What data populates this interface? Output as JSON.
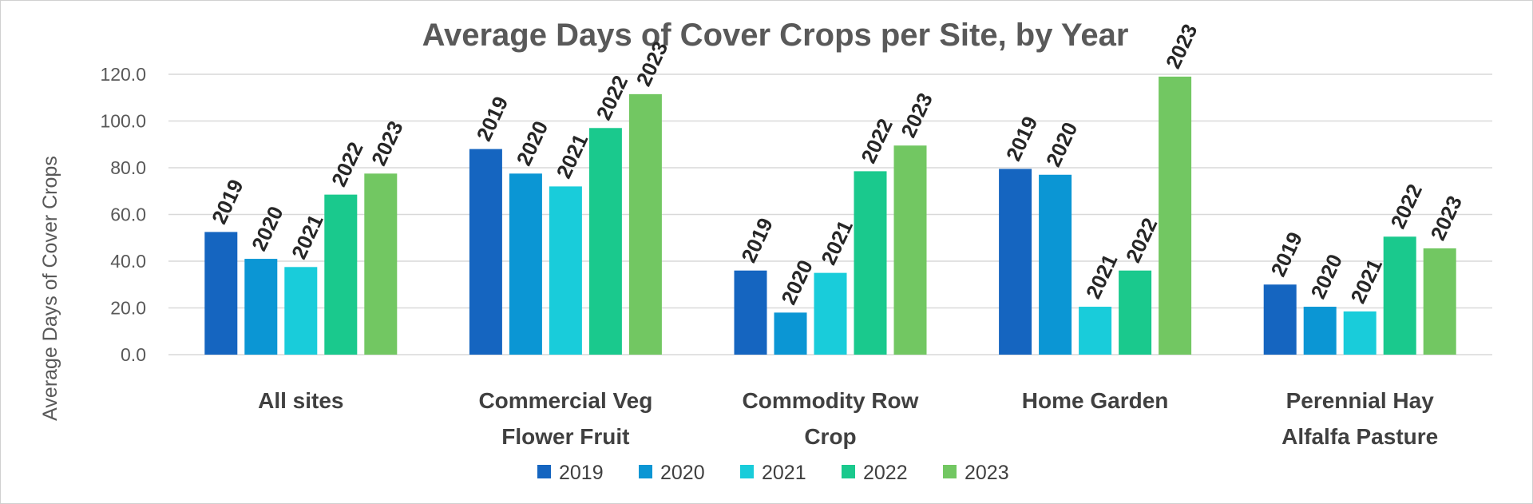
{
  "chart_data": {
    "type": "bar",
    "title": "Average Days of Cover Crops per Site, by Year",
    "xlabel": "",
    "ylabel": "Average Days of Cover Crops",
    "ylim": [
      0,
      120
    ],
    "yticks": [
      "0.0",
      "20.0",
      "40.0",
      "60.0",
      "80.0",
      "100.0",
      "120.0"
    ],
    "grid": true,
    "legend_position": "bottom",
    "categories": [
      [
        "All sites"
      ],
      [
        "Commercial Veg",
        "Flower Fruit"
      ],
      [
        "Commodity Row",
        "Crop"
      ],
      [
        "Home Garden"
      ],
      [
        "Perennial Hay",
        "Alfalfa Pasture"
      ]
    ],
    "series": [
      {
        "name": "2019",
        "color": "#1565C0",
        "values": [
          52.5,
          88.0,
          36.0,
          79.5,
          30.0
        ]
      },
      {
        "name": "2020",
        "color": "#0B96D4",
        "values": [
          41.0,
          77.5,
          18.0,
          77.0,
          20.5
        ]
      },
      {
        "name": "2021",
        "color": "#19CCDA",
        "values": [
          37.5,
          72.0,
          35.0,
          20.5,
          18.5
        ]
      },
      {
        "name": "2022",
        "color": "#1AC98D",
        "values": [
          68.5,
          97.0,
          78.5,
          36.0,
          50.5
        ]
      },
      {
        "name": "2023",
        "color": "#72C762",
        "values": [
          77.5,
          111.5,
          89.5,
          119.0,
          45.5
        ]
      }
    ]
  }
}
